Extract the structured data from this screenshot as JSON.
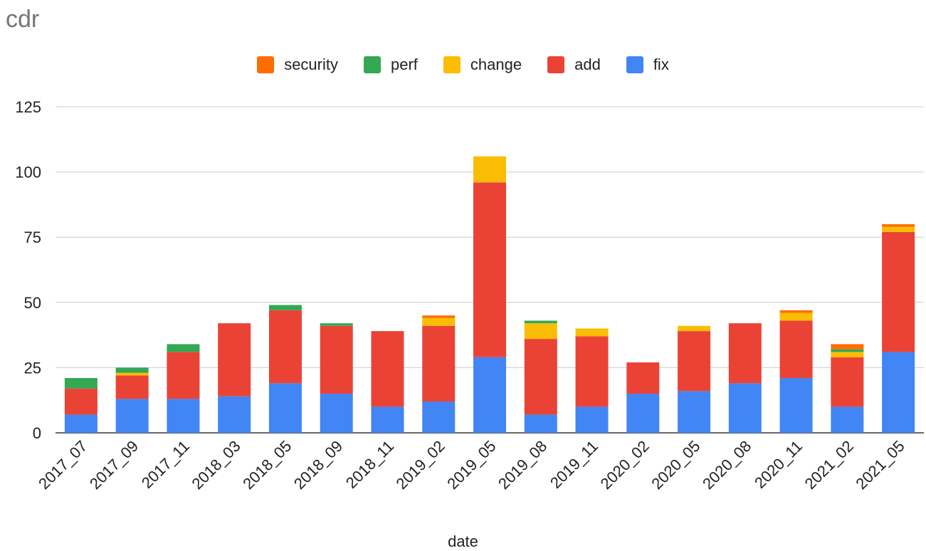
{
  "chart_data": {
    "type": "bar",
    "stacked": true,
    "title": "cdr",
    "xlabel": "date",
    "ylabel": "",
    "ylim": [
      0,
      125
    ],
    "yticks": [
      0,
      25,
      50,
      75,
      100,
      125
    ],
    "grid": true,
    "legend_position": "top",
    "categories": [
      "2017_07",
      "2017_09",
      "2017_11",
      "2018_03",
      "2018_05",
      "2018_09",
      "2018_11",
      "2019_02",
      "2019_05",
      "2019_08",
      "2019_11",
      "2020_02",
      "2020_05",
      "2020_08",
      "2020_11",
      "2021_02",
      "2021_05"
    ],
    "series": [
      {
        "name": "fix",
        "color": "#4285f4",
        "values": [
          7,
          13,
          13,
          14,
          19,
          15,
          10,
          12,
          29,
          7,
          10,
          15,
          16,
          19,
          21,
          10,
          31
        ]
      },
      {
        "name": "add",
        "color": "#ea4335",
        "values": [
          10,
          9,
          18,
          28,
          28,
          26,
          29,
          29,
          67,
          29,
          27,
          12,
          23,
          23,
          22,
          19,
          46
        ]
      },
      {
        "name": "change",
        "color": "#fbbc04",
        "values": [
          0,
          1,
          0,
          0,
          0,
          0,
          0,
          3,
          10,
          6,
          3,
          0,
          2,
          0,
          3,
          2,
          2
        ]
      },
      {
        "name": "perf",
        "color": "#34a853",
        "values": [
          4,
          2,
          3,
          0,
          2,
          1,
          0,
          0,
          0,
          1,
          0,
          0,
          0,
          0,
          0,
          1,
          0
        ]
      },
      {
        "name": "security",
        "color": "#ff6d01",
        "values": [
          0,
          0,
          0,
          0,
          0,
          0,
          0,
          1,
          0,
          0,
          0,
          0,
          0,
          0,
          1,
          2,
          1
        ]
      }
    ],
    "legend_order": [
      "security",
      "perf",
      "change",
      "add",
      "fix"
    ]
  }
}
